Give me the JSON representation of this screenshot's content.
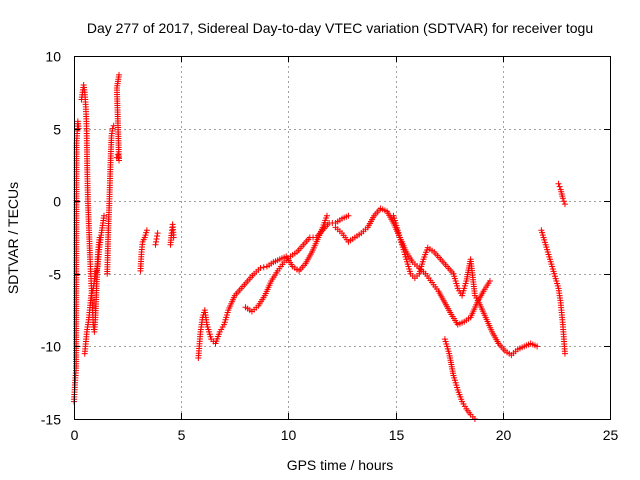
{
  "chart_data": {
    "type": "scatter",
    "title": "Day 277 of 2017, Sidereal Day-to-day VTEC variation (SDTVAR) for receiver togu",
    "xlabel": "GPS time / hours",
    "ylabel": "SDTVAR / TECUs",
    "xlim": [
      0,
      25
    ],
    "ylim": [
      -15,
      10
    ],
    "xticks": [
      0,
      5,
      10,
      15,
      20,
      25
    ],
    "yticks": [
      -15,
      -10,
      -5,
      0,
      5,
      10
    ],
    "grid": true,
    "marker": "+",
    "color": "#ff0000",
    "segments": [
      [
        [
          0.0,
          -13.8
        ],
        [
          0.05,
          -12.5
        ],
        [
          0.1,
          -11.5
        ],
        [
          0.12,
          4.0
        ],
        [
          0.18,
          5.5
        ],
        [
          0.22,
          5.0
        ]
      ],
      [
        [
          0.35,
          7.0
        ],
        [
          0.45,
          8.0
        ],
        [
          0.5,
          7.5
        ],
        [
          0.55,
          6.5
        ],
        [
          0.58,
          5.5
        ],
        [
          0.6,
          4.0
        ],
        [
          0.62,
          2.0
        ],
        [
          0.65,
          0.0
        ],
        [
          0.7,
          -2.0
        ],
        [
          0.75,
          -4.0
        ],
        [
          0.8,
          -5.5
        ],
        [
          0.85,
          -7.0
        ],
        [
          0.9,
          -8.5
        ],
        [
          0.95,
          -9.0
        ],
        [
          1.0,
          -8.0
        ],
        [
          1.05,
          -6.0
        ],
        [
          1.1,
          -4.0
        ],
        [
          1.15,
          -3.0
        ],
        [
          1.2,
          -2.5
        ]
      ],
      [
        [
          0.5,
          -10.5
        ],
        [
          0.6,
          -9.0
        ],
        [
          0.7,
          -8.0
        ],
        [
          0.8,
          -6.5
        ],
        [
          0.9,
          -6.0
        ],
        [
          1.0,
          -5.0
        ],
        [
          1.1,
          -4.5
        ],
        [
          1.2,
          -3.0
        ],
        [
          1.3,
          -2.0
        ],
        [
          1.4,
          -1.0
        ]
      ],
      [
        [
          1.55,
          -5.0
        ],
        [
          1.6,
          -2.0
        ],
        [
          1.65,
          0.0
        ],
        [
          1.7,
          2.5
        ],
        [
          1.75,
          4.5
        ],
        [
          1.8,
          5.0
        ],
        [
          1.85,
          5.2
        ]
      ],
      [
        [
          2.0,
          3.0
        ],
        [
          2.05,
          3.2
        ],
        [
          2.1,
          2.8
        ],
        [
          2.0,
          7.8
        ],
        [
          2.1,
          8.7
        ]
      ],
      [
        [
          3.1,
          -4.8
        ],
        [
          3.15,
          -3.5
        ],
        [
          3.2,
          -2.8
        ],
        [
          3.3,
          -2.5
        ],
        [
          3.4,
          -2.0
        ]
      ],
      [
        [
          3.8,
          -3.0
        ],
        [
          3.85,
          -2.6
        ],
        [
          3.9,
          -2.2
        ]
      ],
      [
        [
          4.5,
          -3.0
        ],
        [
          4.55,
          -2.2
        ],
        [
          4.6,
          -1.6
        ],
        [
          4.65,
          -2.5
        ]
      ],
      [
        [
          5.8,
          -10.8
        ],
        [
          5.9,
          -9.0
        ],
        [
          6.0,
          -8.0
        ],
        [
          6.1,
          -7.5
        ],
        [
          6.2,
          -8.5
        ],
        [
          6.4,
          -9.5
        ],
        [
          6.6,
          -9.8
        ],
        [
          6.8,
          -9.0
        ],
        [
          7.0,
          -8.5
        ],
        [
          7.2,
          -7.5
        ],
        [
          7.5,
          -6.5
        ],
        [
          7.8,
          -6.0
        ],
        [
          8.1,
          -5.5
        ],
        [
          8.4,
          -5.0
        ],
        [
          8.7,
          -4.6
        ],
        [
          9.0,
          -4.5
        ],
        [
          9.3,
          -4.2
        ],
        [
          9.6,
          -4.0
        ],
        [
          9.9,
          -3.8
        ],
        [
          10.2,
          -4.5
        ],
        [
          10.5,
          -4.8
        ],
        [
          10.8,
          -4.3
        ],
        [
          11.1,
          -3.5
        ],
        [
          11.4,
          -2.5
        ],
        [
          11.6,
          -1.8
        ],
        [
          11.8,
          -1.0
        ]
      ],
      [
        [
          8.0,
          -7.3
        ],
        [
          8.3,
          -7.6
        ],
        [
          8.6,
          -7.2
        ],
        [
          8.9,
          -6.5
        ],
        [
          9.2,
          -5.5
        ],
        [
          9.5,
          -4.8
        ],
        [
          9.8,
          -4.2
        ],
        [
          10.1,
          -3.8
        ],
        [
          10.4,
          -3.5
        ],
        [
          10.7,
          -3.0
        ],
        [
          11.0,
          -2.5
        ],
        [
          11.3,
          -2.5
        ],
        [
          11.6,
          -2.0
        ],
        [
          11.9,
          -1.5
        ],
        [
          12.2,
          -1.5
        ],
        [
          12.5,
          -1.2
        ],
        [
          12.8,
          -1.0
        ]
      ],
      [
        [
          12.2,
          -1.8
        ],
        [
          12.5,
          -2.2
        ],
        [
          12.8,
          -2.8
        ],
        [
          13.1,
          -2.5
        ],
        [
          13.4,
          -2.2
        ],
        [
          13.7,
          -1.8
        ],
        [
          14.0,
          -1.0
        ],
        [
          14.3,
          -0.5
        ],
        [
          14.6,
          -0.7
        ],
        [
          14.9,
          -1.5
        ],
        [
          15.2,
          -2.5
        ],
        [
          15.5,
          -3.5
        ],
        [
          15.8,
          -4.2
        ],
        [
          16.1,
          -4.6
        ],
        [
          16.4,
          -5.0
        ],
        [
          16.7,
          -5.6
        ],
        [
          17.0,
          -6.2
        ],
        [
          17.3,
          -7.0
        ],
        [
          17.6,
          -7.8
        ],
        [
          17.9,
          -8.5
        ],
        [
          18.2,
          -8.3
        ],
        [
          18.5,
          -8.0
        ],
        [
          18.8,
          -7.0
        ],
        [
          19.1,
          -6.2
        ],
        [
          19.4,
          -5.5
        ]
      ],
      [
        [
          14.9,
          -1.0
        ],
        [
          15.1,
          -2.0
        ],
        [
          15.3,
          -3.0
        ],
        [
          15.5,
          -4.0
        ],
        [
          15.7,
          -5.0
        ],
        [
          15.9,
          -5.3
        ],
        [
          16.1,
          -5.0
        ],
        [
          16.3,
          -4.0
        ],
        [
          16.5,
          -3.2
        ],
        [
          16.8,
          -3.5
        ],
        [
          17.1,
          -4.0
        ],
        [
          17.4,
          -4.5
        ],
        [
          17.7,
          -5.0
        ],
        [
          17.9,
          -6.0
        ],
        [
          18.1,
          -6.5
        ],
        [
          18.3,
          -5.5
        ],
        [
          18.5,
          -4.0
        ],
        [
          18.7,
          -6.5
        ],
        [
          18.9,
          -7.0
        ],
        [
          19.2,
          -8.0
        ],
        [
          19.5,
          -9.0
        ],
        [
          19.8,
          -9.8
        ],
        [
          20.1,
          -10.3
        ],
        [
          20.4,
          -10.6
        ],
        [
          20.7,
          -10.2
        ],
        [
          21.0,
          -10.0
        ],
        [
          21.3,
          -9.8
        ],
        [
          21.6,
          -10.0
        ]
      ],
      [
        [
          17.3,
          -9.5
        ],
        [
          17.5,
          -10.5
        ],
        [
          17.7,
          -12.0
        ],
        [
          17.9,
          -13.0
        ],
        [
          18.1,
          -13.8
        ],
        [
          18.3,
          -14.3
        ],
        [
          18.5,
          -14.7
        ],
        [
          18.7,
          -15.0
        ]
      ],
      [
        [
          21.8,
          -2.0
        ],
        [
          21.9,
          -2.5
        ],
        [
          22.0,
          -3.0
        ],
        [
          22.1,
          -3.5
        ],
        [
          22.2,
          -4.0
        ],
        [
          22.3,
          -4.5
        ],
        [
          22.4,
          -5.0
        ],
        [
          22.5,
          -5.5
        ],
        [
          22.6,
          -6.0
        ],
        [
          22.7,
          -7.0
        ],
        [
          22.8,
          -8.5
        ],
        [
          22.85,
          -9.5
        ],
        [
          22.9,
          -10.5
        ]
      ],
      [
        [
          22.6,
          1.2
        ],
        [
          22.7,
          0.8
        ],
        [
          22.8,
          0.2
        ],
        [
          22.9,
          -0.2
        ]
      ]
    ]
  }
}
